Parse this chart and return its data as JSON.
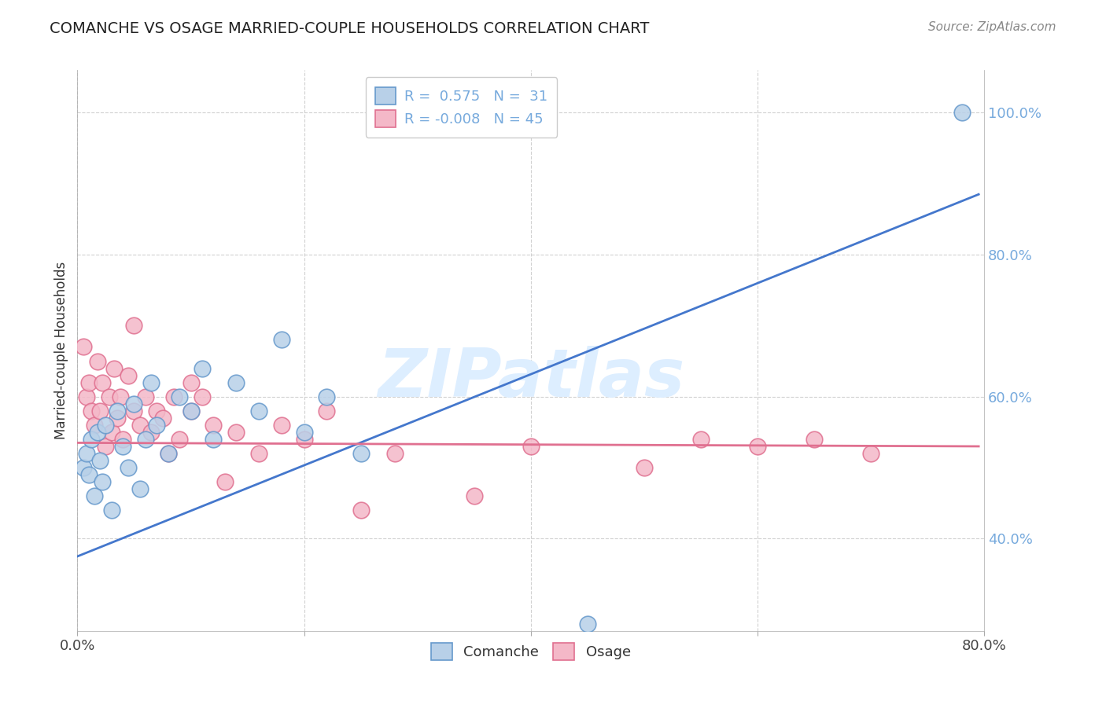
{
  "title": "COMANCHE VS OSAGE MARRIED-COUPLE HOUSEHOLDS CORRELATION CHART",
  "source": "Source: ZipAtlas.com",
  "ylabel": "Married-couple Households",
  "xlim": [
    0.0,
    0.8
  ],
  "ylim": [
    0.27,
    1.06
  ],
  "xticks": [
    0.0,
    0.2,
    0.4,
    0.6,
    0.8
  ],
  "xticklabels": [
    "0.0%",
    "",
    "",
    "",
    "80.0%"
  ],
  "yticks": [
    0.4,
    0.6,
    0.8,
    1.0
  ],
  "yticklabels": [
    "40.0%",
    "60.0%",
    "80.0%",
    "100.0%"
  ],
  "comanche_R": 0.575,
  "comanche_N": 31,
  "osage_R": -0.008,
  "osage_N": 45,
  "comanche_face": "#b8d0e8",
  "comanche_edge": "#6699cc",
  "osage_face": "#f4b8c8",
  "osage_edge": "#e07090",
  "blue_line_color": "#4477cc",
  "pink_line_color": "#e07090",
  "watermark_text": "ZIPatlas",
  "watermark_color": "#ddeeff",
  "title_color": "#222222",
  "source_color": "#888888",
  "grid_color": "#cccccc",
  "axis_tick_color": "#77aadd",
  "legend_text_color": "#77aadd",
  "comanche_x": [
    0.005,
    0.008,
    0.01,
    0.012,
    0.015,
    0.018,
    0.02,
    0.022,
    0.025,
    0.03,
    0.035,
    0.04,
    0.045,
    0.05,
    0.055,
    0.06,
    0.065,
    0.07,
    0.08,
    0.09,
    0.1,
    0.11,
    0.12,
    0.14,
    0.16,
    0.18,
    0.2,
    0.22,
    0.25,
    0.45,
    0.78
  ],
  "comanche_y": [
    0.5,
    0.52,
    0.49,
    0.54,
    0.46,
    0.55,
    0.51,
    0.48,
    0.56,
    0.44,
    0.58,
    0.53,
    0.5,
    0.59,
    0.47,
    0.54,
    0.62,
    0.56,
    0.52,
    0.6,
    0.58,
    0.64,
    0.54,
    0.62,
    0.58,
    0.68,
    0.55,
    0.6,
    0.52,
    0.28,
    1.0
  ],
  "osage_x": [
    0.005,
    0.008,
    0.01,
    0.012,
    0.015,
    0.018,
    0.02,
    0.022,
    0.025,
    0.028,
    0.03,
    0.032,
    0.035,
    0.038,
    0.04,
    0.045,
    0.05,
    0.055,
    0.06,
    0.065,
    0.07,
    0.075,
    0.08,
    0.085,
    0.09,
    0.1,
    0.11,
    0.12,
    0.13,
    0.14,
    0.16,
    0.18,
    0.2,
    0.22,
    0.25,
    0.28,
    0.35,
    0.4,
    0.5,
    0.55,
    0.6,
    0.65,
    0.7,
    0.05,
    0.1
  ],
  "osage_y": [
    0.67,
    0.6,
    0.62,
    0.58,
    0.56,
    0.65,
    0.58,
    0.62,
    0.53,
    0.6,
    0.55,
    0.64,
    0.57,
    0.6,
    0.54,
    0.63,
    0.58,
    0.56,
    0.6,
    0.55,
    0.58,
    0.57,
    0.52,
    0.6,
    0.54,
    0.58,
    0.6,
    0.56,
    0.48,
    0.55,
    0.52,
    0.56,
    0.54,
    0.58,
    0.44,
    0.52,
    0.46,
    0.53,
    0.5,
    0.54,
    0.53,
    0.54,
    0.52,
    0.7,
    0.62
  ],
  "blue_line_x": [
    0.0,
    0.795
  ],
  "blue_line_y": [
    0.375,
    0.885
  ],
  "pink_line_x": [
    0.0,
    0.795
  ],
  "pink_line_y": [
    0.535,
    0.53
  ],
  "scatter_size": 220
}
